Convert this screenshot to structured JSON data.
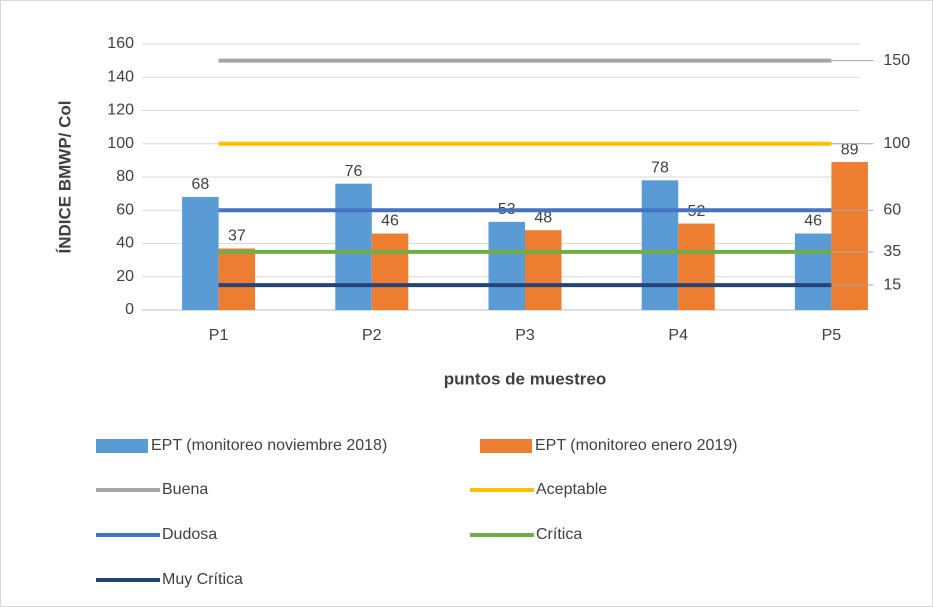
{
  "chart_data": {
    "type": "bar",
    "y_label": "ÍNDICE BMWP/ Col",
    "x_label": "puntos de muestreo",
    "categories": [
      "P1",
      "P2",
      "P3",
      "P4",
      "P5"
    ],
    "ylim": [
      0,
      160
    ],
    "yticks": [
      0,
      20,
      40,
      60,
      80,
      100,
      120,
      140,
      160
    ],
    "grid": true,
    "series": [
      {
        "name": "EPT (monitoreo noviembre 2018)",
        "type": "bar",
        "color": "#5b9bd5",
        "values": [
          68,
          76,
          53,
          78,
          46
        ]
      },
      {
        "name": "EPT (monitoreo enero 2019)",
        "type": "bar",
        "color": "#ed7d31",
        "values": [
          37,
          46,
          48,
          52,
          89
        ]
      },
      {
        "name": "Buena",
        "type": "line",
        "color": "#a5a5a5",
        "values": [
          150,
          150,
          150,
          150,
          150
        ]
      },
      {
        "name": "Aceptable",
        "type": "line",
        "color": "#ffc000",
        "values": [
          100,
          100,
          100,
          100,
          100
        ]
      },
      {
        "name": "Dudosa",
        "type": "line",
        "color": "#4472c4",
        "values": [
          60,
          60,
          60,
          60,
          60
        ]
      },
      {
        "name": "Crítica",
        "type": "line",
        "color": "#70ad47",
        "values": [
          35,
          35,
          35,
          35,
          35
        ]
      },
      {
        "name": "Muy Crítica",
        "type": "line",
        "color": "#264478",
        "values": [
          15,
          15,
          15,
          15,
          15
        ]
      }
    ]
  }
}
